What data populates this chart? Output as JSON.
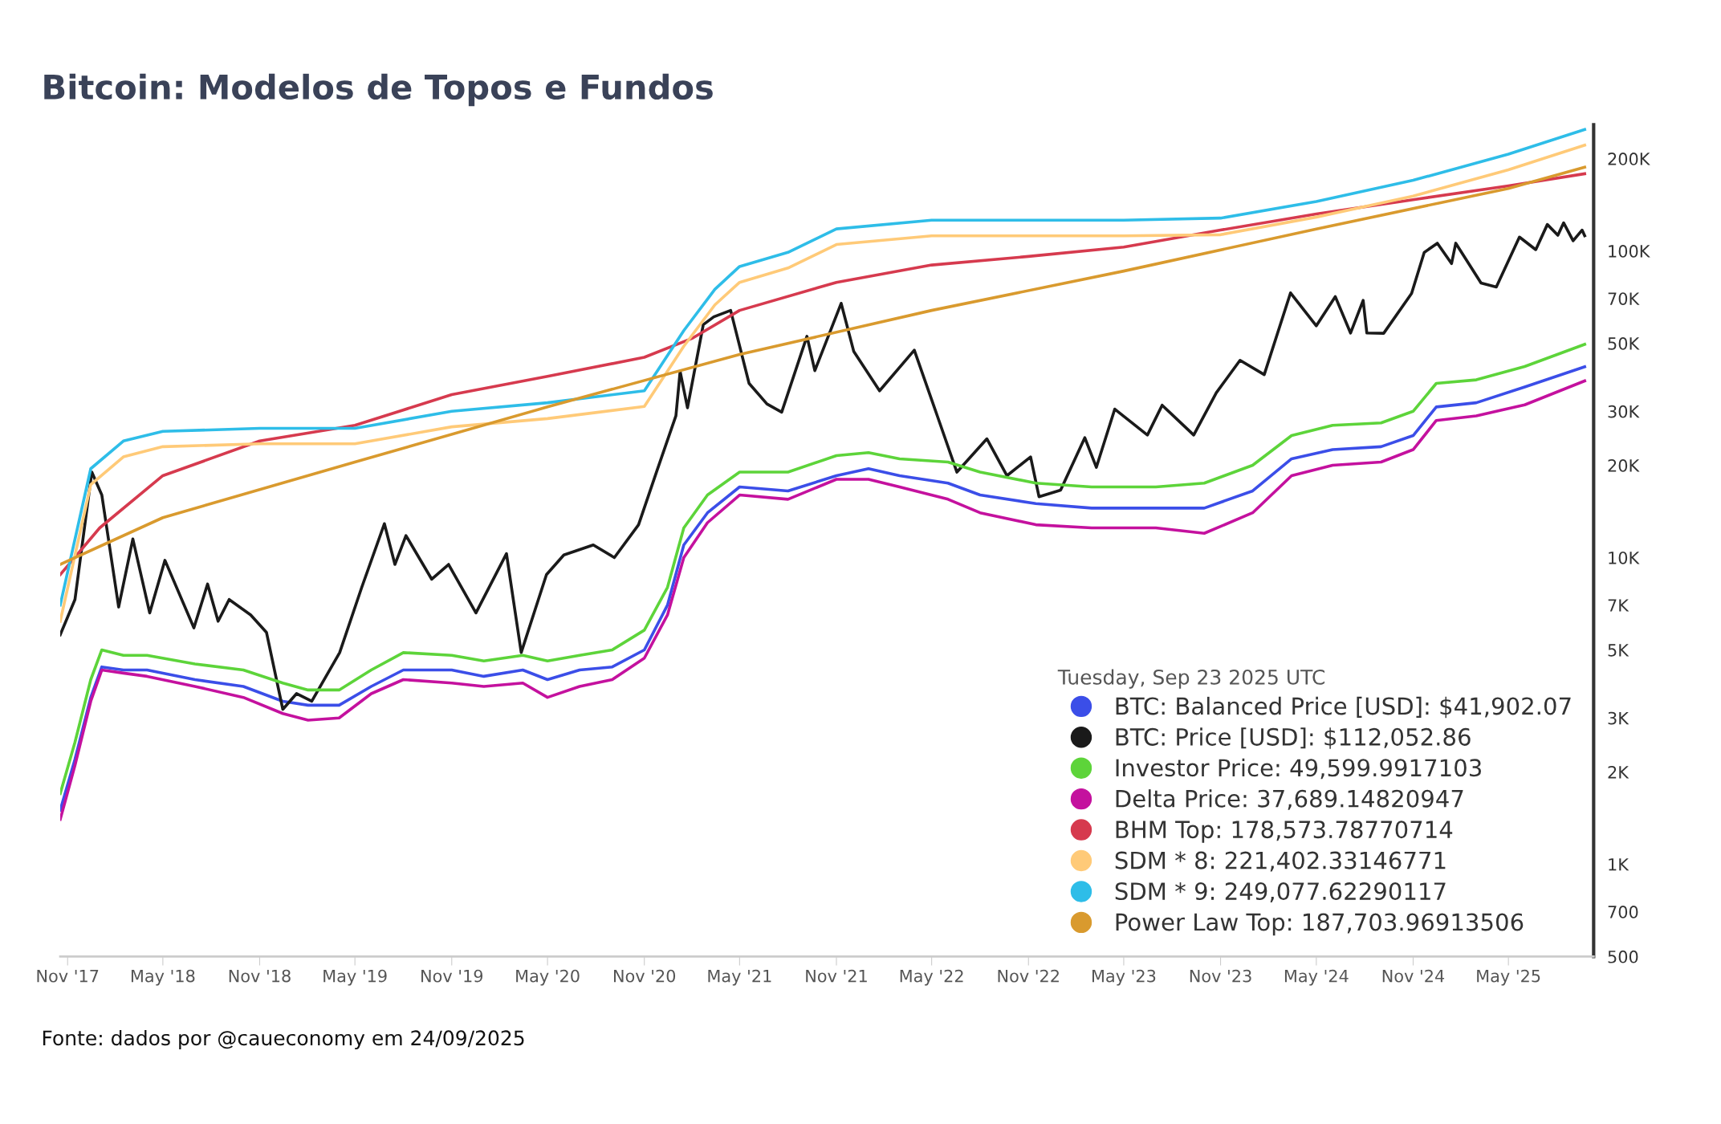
{
  "chart_data": {
    "type": "line",
    "title": "Bitcoin: Modelos de Topos e Fundos",
    "annotations": [
      "Fonte: dados por @caueconomy em 24/09/2025"
    ],
    "legend_title": "Tuesday, Sep 23 2025 UTC",
    "legend": "bottom right",
    "log": "y",
    "grid": false,
    "marker": "none",
    "line_style": "solid",
    "xlim": [
      "2017-10-18",
      "2025-10-10"
    ],
    "ylim": [
      500,
      258000
    ],
    "xticks": [
      {
        "value": "2017-11-01",
        "label": "Nov '17"
      },
      {
        "value": "2018-05-01",
        "label": "May '18"
      },
      {
        "value": "2018-11-01",
        "label": "Nov '18"
      },
      {
        "value": "2019-05-01",
        "label": "May '19"
      },
      {
        "value": "2019-11-01",
        "label": "Nov '19"
      },
      {
        "value": "2020-05-01",
        "label": "May '20"
      },
      {
        "value": "2020-11-01",
        "label": "Nov '20"
      },
      {
        "value": "2021-05-01",
        "label": "May '21"
      },
      {
        "value": "2021-11-01",
        "label": "Nov '21"
      },
      {
        "value": "2022-05-01",
        "label": "May '22"
      },
      {
        "value": "2022-11-01",
        "label": "Nov '22"
      },
      {
        "value": "2023-05-01",
        "label": "May '23"
      },
      {
        "value": "2023-11-01",
        "label": "Nov '23"
      },
      {
        "value": "2024-05-01",
        "label": "May '24"
      },
      {
        "value": "2024-11-01",
        "label": "Nov '24"
      },
      {
        "value": "2025-05-01",
        "label": "May '25"
      }
    ],
    "yticks": [
      500,
      700,
      {
        "value": 1000,
        "label": "1K"
      },
      {
        "value": 2000,
        "label": "2K"
      },
      {
        "value": 3000,
        "label": "3K"
      },
      {
        "value": 5000,
        "label": "5K"
      },
      {
        "value": 7000,
        "label": "7K"
      },
      {
        "value": 10000,
        "label": "10K"
      },
      {
        "value": 20000,
        "label": "20K"
      },
      {
        "value": 30000,
        "label": "30K"
      },
      {
        "value": 50000,
        "label": "50K"
      },
      {
        "value": 70000,
        "label": "70K"
      },
      {
        "value": 100000,
        "label": "100K"
      },
      {
        "value": 200000,
        "label": "200K"
      }
    ],
    "series": [
      {
        "name": "BTC: Balanced Price [USD]: $41,902.07",
        "color": "#3b4ee8",
        "x": [
          "2017-10-18",
          "2017-11-15",
          "2017-12-15",
          "2018-01-05",
          "2018-02-15",
          "2018-04-01",
          "2018-07-01",
          "2018-10-01",
          "2018-12-15",
          "2019-02-01",
          "2019-04-01",
          "2019-06-01",
          "2019-08-01",
          "2019-11-01",
          "2020-01-01",
          "2020-03-15",
          "2020-05-01",
          "2020-07-01",
          "2020-09-01",
          "2020-11-01",
          "2020-12-15",
          "2021-01-15",
          "2021-03-01",
          "2021-05-01",
          "2021-08-01",
          "2021-11-01",
          "2022-01-01",
          "2022-03-01",
          "2022-06-01",
          "2022-08-01",
          "2022-11-15",
          "2023-03-01",
          "2023-07-01",
          "2023-10-01",
          "2024-01-01",
          "2024-03-15",
          "2024-06-01",
          "2024-09-01",
          "2024-11-01",
          "2024-12-15",
          "2025-03-01",
          "2025-06-01",
          "2025-09-23"
        ],
        "values": [
          1500,
          2200,
          3500,
          4400,
          4300,
          4300,
          4000,
          3800,
          3400,
          3300,
          3300,
          3800,
          4300,
          4300,
          4100,
          4300,
          4000,
          4300,
          4400,
          5000,
          7000,
          11000,
          14000,
          17000,
          16500,
          18500,
          19500,
          18500,
          17500,
          16000,
          15000,
          14500,
          14500,
          14500,
          16500,
          21000,
          22500,
          23000,
          25000,
          31000,
          32000,
          36000,
          41902.07
        ]
      },
      {
        "name": "BTC: Price [USD]: $112,052.86",
        "color": "#1a1a1a",
        "x": [
          "2017-10-18",
          "2017-11-15",
          "2017-12-17",
          "2018-01-05",
          "2018-02-06",
          "2018-03-05",
          "2018-04-06",
          "2018-05-05",
          "2018-06-29",
          "2018-07-25",
          "2018-08-14",
          "2018-09-04",
          "2018-10-15",
          "2018-11-14",
          "2018-12-15",
          "2019-01-10",
          "2019-02-08",
          "2019-04-02",
          "2019-05-14",
          "2019-06-26",
          "2019-07-16",
          "2019-08-06",
          "2019-09-24",
          "2019-10-26",
          "2019-12-17",
          "2020-02-13",
          "2020-03-12",
          "2020-04-29",
          "2020-06-01",
          "2020-07-27",
          "2020-09-05",
          "2020-10-21",
          "2020-11-24",
          "2020-12-31",
          "2021-01-08",
          "2021-01-22",
          "2021-02-21",
          "2021-03-13",
          "2021-04-14",
          "2021-05-19",
          "2021-06-22",
          "2021-07-20",
          "2021-09-06",
          "2021-09-21",
          "2021-11-10",
          "2021-12-04",
          "2022-01-22",
          "2022-03-29",
          "2022-05-12",
          "2022-06-18",
          "2022-08-14",
          "2022-09-21",
          "2022-11-05",
          "2022-11-21",
          "2023-01-01",
          "2023-02-16",
          "2023-03-10",
          "2023-04-14",
          "2023-06-15",
          "2023-07-13",
          "2023-09-11",
          "2023-10-24",
          "2023-12-08",
          "2024-01-23",
          "2024-03-13",
          "2024-05-01",
          "2024-06-06",
          "2024-07-05",
          "2024-07-29",
          "2024-08-05",
          "2024-09-06",
          "2024-10-29",
          "2024-11-22",
          "2024-12-17",
          "2025-01-13",
          "2025-01-21",
          "2025-03-10",
          "2025-04-08",
          "2025-05-22",
          "2025-06-22",
          "2025-07-14",
          "2025-08-03",
          "2025-08-14",
          "2025-09-01",
          "2025-09-18",
          "2025-09-23"
        ],
        "values": [
          5600,
          7300,
          19000,
          16000,
          6900,
          11500,
          6600,
          9800,
          5900,
          8200,
          6200,
          7300,
          6500,
          5700,
          3200,
          3600,
          3400,
          4900,
          8000,
          12900,
          9500,
          11800,
          8500,
          9500,
          6600,
          10300,
          4900,
          8800,
          10200,
          11000,
          10000,
          12800,
          19000,
          29000,
          40500,
          30800,
          57500,
          61000,
          64000,
          37000,
          31700,
          29800,
          52700,
          40700,
          67500,
          47000,
          35000,
          47500,
          28900,
          19000,
          24400,
          18500,
          21300,
          15800,
          16600,
          24600,
          19700,
          30500,
          25100,
          31400,
          25100,
          34500,
          44000,
          39500,
          73000,
          57000,
          71000,
          54000,
          69000,
          54000,
          53900,
          72700,
          98900,
          106000,
          91000,
          106000,
          78600,
          76300,
          111000,
          101000,
          122000,
          112500,
          123500,
          108000,
          117000,
          112052.86
        ]
      },
      {
        "name": "Investor Price: 49,599.9917103",
        "color": "#5dd43a",
        "x": [
          "2017-10-18",
          "2017-11-15",
          "2017-12-15",
          "2018-01-05",
          "2018-02-15",
          "2018-04-01",
          "2018-07-01",
          "2018-10-01",
          "2018-12-15",
          "2019-02-01",
          "2019-04-01",
          "2019-06-01",
          "2019-08-01",
          "2019-11-01",
          "2020-01-01",
          "2020-03-15",
          "2020-05-01",
          "2020-07-01",
          "2020-09-01",
          "2020-11-01",
          "2020-12-15",
          "2021-01-15",
          "2021-03-01",
          "2021-05-01",
          "2021-08-01",
          "2021-11-01",
          "2022-01-01",
          "2022-03-01",
          "2022-06-01",
          "2022-08-01",
          "2022-11-15",
          "2023-03-01",
          "2023-07-01",
          "2023-10-01",
          "2024-01-01",
          "2024-03-15",
          "2024-06-01",
          "2024-09-01",
          "2024-11-01",
          "2024-12-15",
          "2025-03-01",
          "2025-06-01",
          "2025-09-23"
        ],
        "values": [
          1700,
          2500,
          4000,
          5000,
          4800,
          4800,
          4500,
          4300,
          3900,
          3700,
          3700,
          4300,
          4900,
          4800,
          4600,
          4800,
          4600,
          4800,
          5000,
          5800,
          8000,
          12500,
          16000,
          19000,
          19000,
          21500,
          22000,
          21000,
          20500,
          19000,
          17500,
          17000,
          17000,
          17500,
          20000,
          25000,
          27000,
          27500,
          30000,
          37000,
          38000,
          42000,
          49599.99
        ]
      },
      {
        "name": "Delta Price: 37,689.14820947",
        "color": "#c4119e",
        "x": [
          "2017-10-18",
          "2017-11-15",
          "2017-12-15",
          "2018-01-05",
          "2018-02-15",
          "2018-04-01",
          "2018-07-01",
          "2018-10-01",
          "2018-12-15",
          "2019-02-01",
          "2019-04-01",
          "2019-06-01",
          "2019-08-01",
          "2019-11-01",
          "2020-01-01",
          "2020-03-15",
          "2020-05-01",
          "2020-07-01",
          "2020-09-01",
          "2020-11-01",
          "2020-12-15",
          "2021-01-15",
          "2021-03-01",
          "2021-05-01",
          "2021-08-01",
          "2021-11-01",
          "2022-01-01",
          "2022-03-01",
          "2022-06-01",
          "2022-08-01",
          "2022-11-15",
          "2023-03-01",
          "2023-07-01",
          "2023-10-01",
          "2024-01-01",
          "2024-03-15",
          "2024-06-01",
          "2024-09-01",
          "2024-11-01",
          "2024-12-15",
          "2025-03-01",
          "2025-06-01",
          "2025-09-23"
        ],
        "values": [
          1400,
          2100,
          3400,
          4300,
          4200,
          4100,
          3800,
          3500,
          3100,
          2950,
          3000,
          3600,
          4000,
          3900,
          3800,
          3900,
          3500,
          3800,
          4000,
          4700,
          6500,
          10000,
          13000,
          16000,
          15500,
          18000,
          18000,
          17000,
          15500,
          14000,
          12800,
          12500,
          12500,
          12000,
          14000,
          18500,
          20000,
          20500,
          22500,
          28000,
          29000,
          31500,
          37689.15
        ]
      },
      {
        "name": "BHM Top: 178,573.78770714",
        "color": "#d63a4e",
        "x": [
          "2017-10-18",
          "2018-01-01",
          "2018-05-01",
          "2018-11-01",
          "2019-05-01",
          "2019-11-01",
          "2020-05-01",
          "2020-11-01",
          "2021-02-01",
          "2021-05-01",
          "2021-11-01",
          "2022-05-01",
          "2022-11-01",
          "2023-05-01",
          "2023-11-01",
          "2024-05-01",
          "2024-11-01",
          "2025-05-01",
          "2025-09-23"
        ],
        "values": [
          8800,
          12500,
          18500,
          24000,
          27000,
          34000,
          39000,
          45000,
          52000,
          64000,
          79000,
          90000,
          96000,
          103000,
          117000,
          132000,
          147000,
          163000,
          178573.79
        ]
      },
      {
        "name": "SDM * 8: 221,402.33146771",
        "color": "#ffca78",
        "x": [
          "2017-10-18",
          "2017-12-15",
          "2018-02-15",
          "2018-05-01",
          "2018-11-01",
          "2019-05-01",
          "2019-11-01",
          "2020-05-01",
          "2020-11-01",
          "2021-01-15",
          "2021-03-15",
          "2021-05-01",
          "2021-08-01",
          "2021-11-01",
          "2022-05-01",
          "2022-11-01",
          "2023-05-01",
          "2023-11-01",
          "2024-05-01",
          "2024-11-01",
          "2025-05-01",
          "2025-09-23"
        ],
        "values": [
          6200,
          17300,
          21300,
          23000,
          23500,
          23500,
          26700,
          28400,
          31100,
          48900,
          66700,
          79000,
          88000,
          105000,
          112000,
          112000,
          112000,
          113000,
          129000,
          151000,
          184000,
          221402.33
        ]
      },
      {
        "name": "SDM * 9: 249,077.62290117",
        "color": "#2ebde8",
        "x": [
          "2017-10-18",
          "2017-12-15",
          "2018-02-15",
          "2018-05-01",
          "2018-11-01",
          "2019-05-01",
          "2019-11-01",
          "2020-05-01",
          "2020-11-01",
          "2021-01-15",
          "2021-03-15",
          "2021-05-01",
          "2021-08-01",
          "2021-11-01",
          "2022-05-01",
          "2022-11-01",
          "2023-05-01",
          "2023-11-01",
          "2024-05-01",
          "2024-11-01",
          "2025-05-01",
          "2025-09-23"
        ],
        "values": [
          7000,
          19500,
          24000,
          25800,
          26400,
          26400,
          30000,
          32000,
          35000,
          55000,
          75000,
          89000,
          99000,
          118000,
          126000,
          126000,
          126000,
          128000,
          145000,
          170000,
          207000,
          249077.62
        ]
      },
      {
        "name": "Power Law Top: 187,703.96913506",
        "color": "#d99a2e",
        "x": [
          "2017-10-18",
          "2018-05-01",
          "2019-05-01",
          "2020-05-01",
          "2021-05-01",
          "2022-05-01",
          "2023-05-01",
          "2024-05-01",
          "2025-05-01",
          "2025-09-23"
        ],
        "values": [
          9500,
          13500,
          20500,
          31000,
          46000,
          64000,
          86000,
          118000,
          160000,
          187703.97
        ]
      }
    ]
  }
}
